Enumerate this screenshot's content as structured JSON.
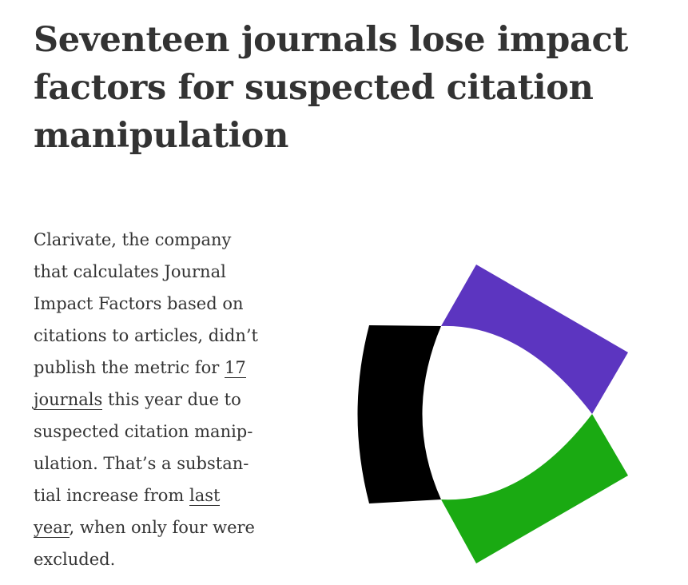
{
  "article": {
    "headline": "Seventeen journals lose impact factors for suspected citation manipulation",
    "body": {
      "l1": "Clarivate, the company",
      "l2": "that calculates Journal",
      "l3": "Impact Factors based on",
      "l4": "citations to articles, didn’t",
      "l5_pre": "publish the metric for ",
      "link1_part1": "17",
      "link1_part2": "journals",
      "l6_post": " this year due to",
      "l7": "suspected citation manip-",
      "l8": "ulation. That’s a substan-",
      "l9_pre": "tial increase from ",
      "link2_part1": "last",
      "link2_part2": "year",
      "l10_post": ", when only four were",
      "l11": "excluded."
    }
  },
  "logo": {
    "icon": "clarivate-logo-icon",
    "colors": {
      "purple": "#5c35c0",
      "black": "#000000",
      "green": "#1aaa12"
    }
  }
}
